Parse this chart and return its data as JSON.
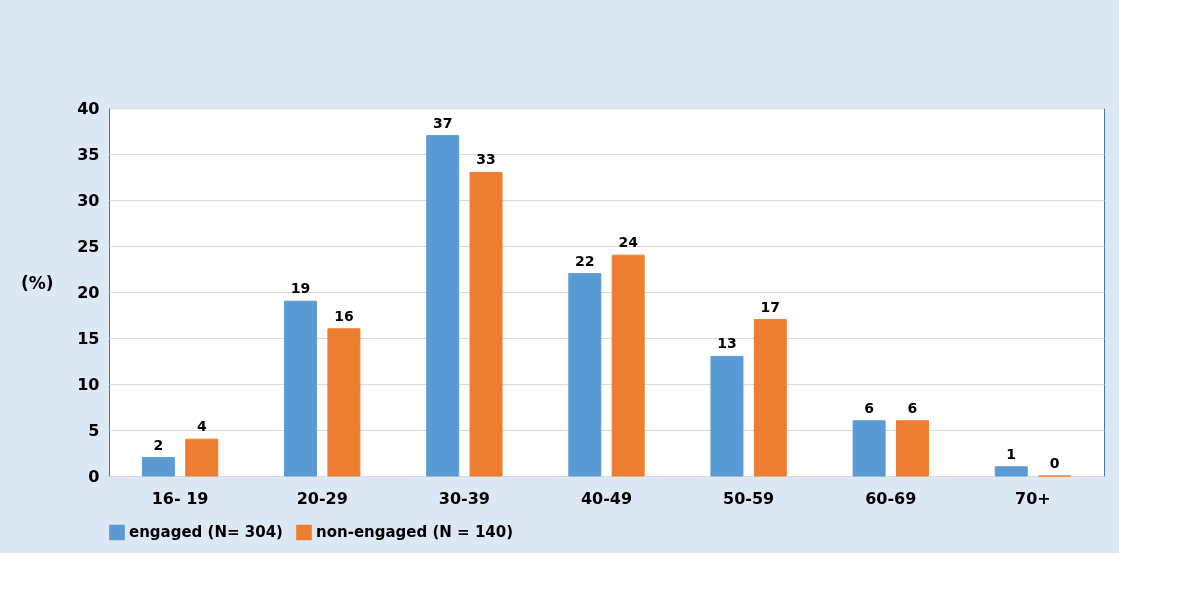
{
  "chart_data": {
    "type": "bar",
    "ylabel": "(%)",
    "categories": [
      "16- 19",
      "20-29",
      "30-39",
      "40-49",
      "50-59",
      "60-69",
      "70+"
    ],
    "series": [
      {
        "name": "engaged (N= 304)",
        "color": "#5b9bd5",
        "values": [
          2,
          19,
          37,
          22,
          13,
          6,
          1
        ]
      },
      {
        "name": "non-engaged (N = 140)",
        "color": "#ed7d31",
        "values": [
          4,
          16,
          33,
          24,
          17,
          6,
          0
        ]
      }
    ],
    "ylim": [
      0,
      40
    ],
    "yticks": [
      0,
      5,
      10,
      15,
      20,
      25,
      30,
      35,
      40
    ],
    "grid": "y",
    "legend": "bottom",
    "data_labels": true
  }
}
